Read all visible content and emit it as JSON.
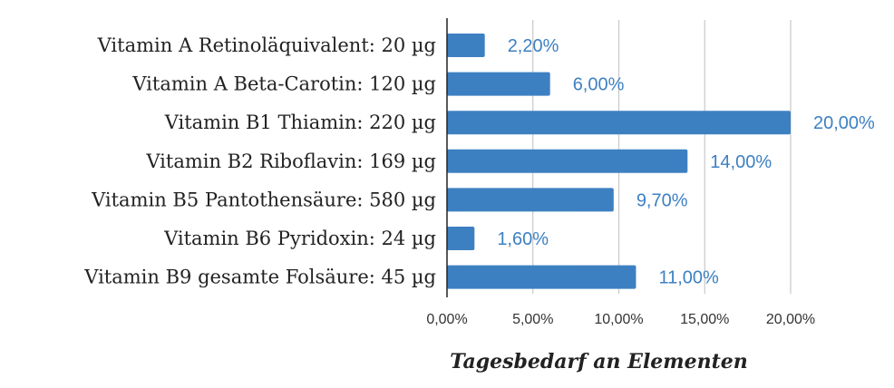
{
  "chart_data": {
    "type": "bar",
    "orientation": "horizontal",
    "categories": [
      "Vitamin A Retinoläquivalent: 20 µg",
      "Vitamin A Beta-Carotin: 120 µg",
      "Vitamin B1 Thiamin: 220 µg",
      "Vitamin B2 Riboflavin: 169 µg",
      "Vitamin B5 Pantothensäure: 580 µg",
      "Vitamin B6 Pyridoxin: 24 µg",
      "Vitamin B9 gesamte Folsäure: 45 µg"
    ],
    "values": [
      2.2,
      6.0,
      20.0,
      14.0,
      9.7,
      1.6,
      11.0
    ],
    "data_labels": [
      "2,20%",
      "6,00%",
      "20,00%",
      "14,00%",
      "9,70%",
      "1,60%",
      "11,00%"
    ],
    "xlim": [
      0,
      20
    ],
    "xticks": [
      0,
      5,
      10,
      15,
      20
    ],
    "xtick_labels": [
      "0,00%",
      "5,00%",
      "10,00%",
      "15,00%",
      "20,00%"
    ],
    "xlabel": "Tagesbedarf an Elementen",
    "title": "",
    "grid": "vertical",
    "legend": "none",
    "bar_color": "#3d80c2",
    "label_color": "#3d80c2",
    "grid_color": "#c8c8c8"
  }
}
